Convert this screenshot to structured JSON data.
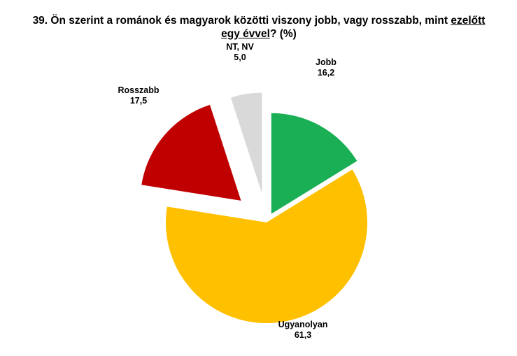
{
  "chart_data": {
    "type": "pie",
    "title": {
      "pre": "39. Ön szerint a románok és magyarok közötti viszony jobb, vagy rosszabb, mint ",
      "underlined_1": "ezelőtt",
      "underlined_2": "egy évvel",
      "post": "? (%)"
    },
    "slices": [
      {
        "label": "Jobb",
        "value": 16.2,
        "value_text": "16,2",
        "color": "#1aaf54"
      },
      {
        "label": "Ugyanolyan",
        "value": 61.3,
        "value_text": "61,3",
        "color": "#ffc000"
      },
      {
        "label": "Rosszabb",
        "value": 17.5,
        "value_text": "17,5",
        "color": "#c00000"
      },
      {
        "label": "NT, NV",
        "value": 5.0,
        "value_text": "5,0",
        "color": "#d9d9d9"
      }
    ],
    "exploded": true,
    "start_angle_deg": 0,
    "direction": "clockwise",
    "legend": "none"
  }
}
